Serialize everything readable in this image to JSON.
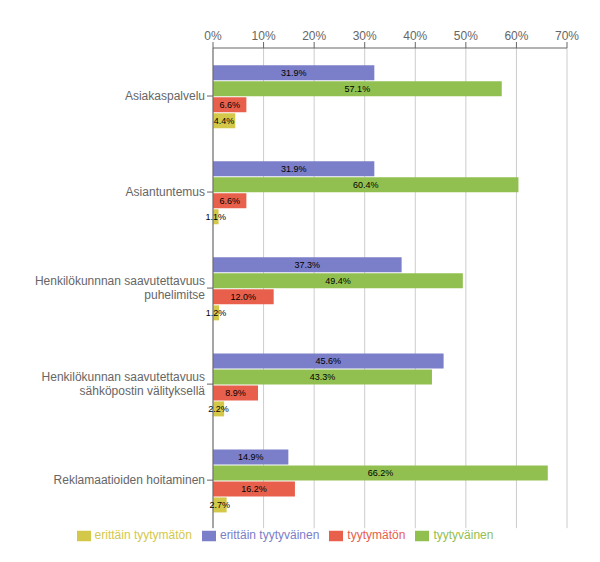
{
  "chart_data": {
    "type": "bar",
    "orientation": "horizontal",
    "categories": [
      "Asiakaspalvelu",
      "Asiantuntemus",
      "Henkilökunnnan saavutettavuus\npuhelimitse",
      "Henkilökunnan saavutettavuus\nsähköpostin välityksellä",
      "Reklamaatioiden hoitaminen"
    ],
    "series": [
      {
        "name": "erittäin tyytyväinen",
        "color": "#7b7ec8",
        "values": [
          31.9,
          31.9,
          37.3,
          45.6,
          14.9
        ],
        "value_labels": [
          "31.9%",
          "31.9%",
          "37.3%",
          "45.6%",
          "14.9%"
        ]
      },
      {
        "name": "tyytyväinen",
        "color": "#92c050",
        "values": [
          57.1,
          60.4,
          49.4,
          43.3,
          66.2
        ],
        "value_labels": [
          "57.1%",
          "60.4%",
          "49.4%",
          "43.3%",
          "66.2%"
        ]
      },
      {
        "name": "tyytymätön",
        "color": "#e8604c",
        "values": [
          6.6,
          6.6,
          12.0,
          8.9,
          16.2
        ],
        "value_labels": [
          "6.6%",
          "6.6%",
          "12.0%",
          "8.9%",
          "16.2%"
        ]
      },
      {
        "name": "erittäin tyytymätön",
        "color": "#d4c84a",
        "values": [
          4.4,
          1.1,
          1.2,
          2.2,
          2.7
        ],
        "value_labels": [
          "4.4%",
          "1.1%",
          "1.2%",
          "2.2%",
          "2.7%"
        ]
      }
    ],
    "xlim": [
      0,
      70
    ],
    "xticks": [
      {
        "value": 0,
        "label": "0%"
      },
      {
        "value": 10,
        "label": "10%"
      },
      {
        "value": 20,
        "label": "20%"
      },
      {
        "value": 30,
        "label": "30%"
      },
      {
        "value": 40,
        "label": "40%"
      },
      {
        "value": 50,
        "label": "50%"
      },
      {
        "value": 60,
        "label": "60%"
      },
      {
        "value": 70,
        "label": "70%"
      }
    ],
    "grid": true,
    "legend": "bottom",
    "data_labels": true
  }
}
